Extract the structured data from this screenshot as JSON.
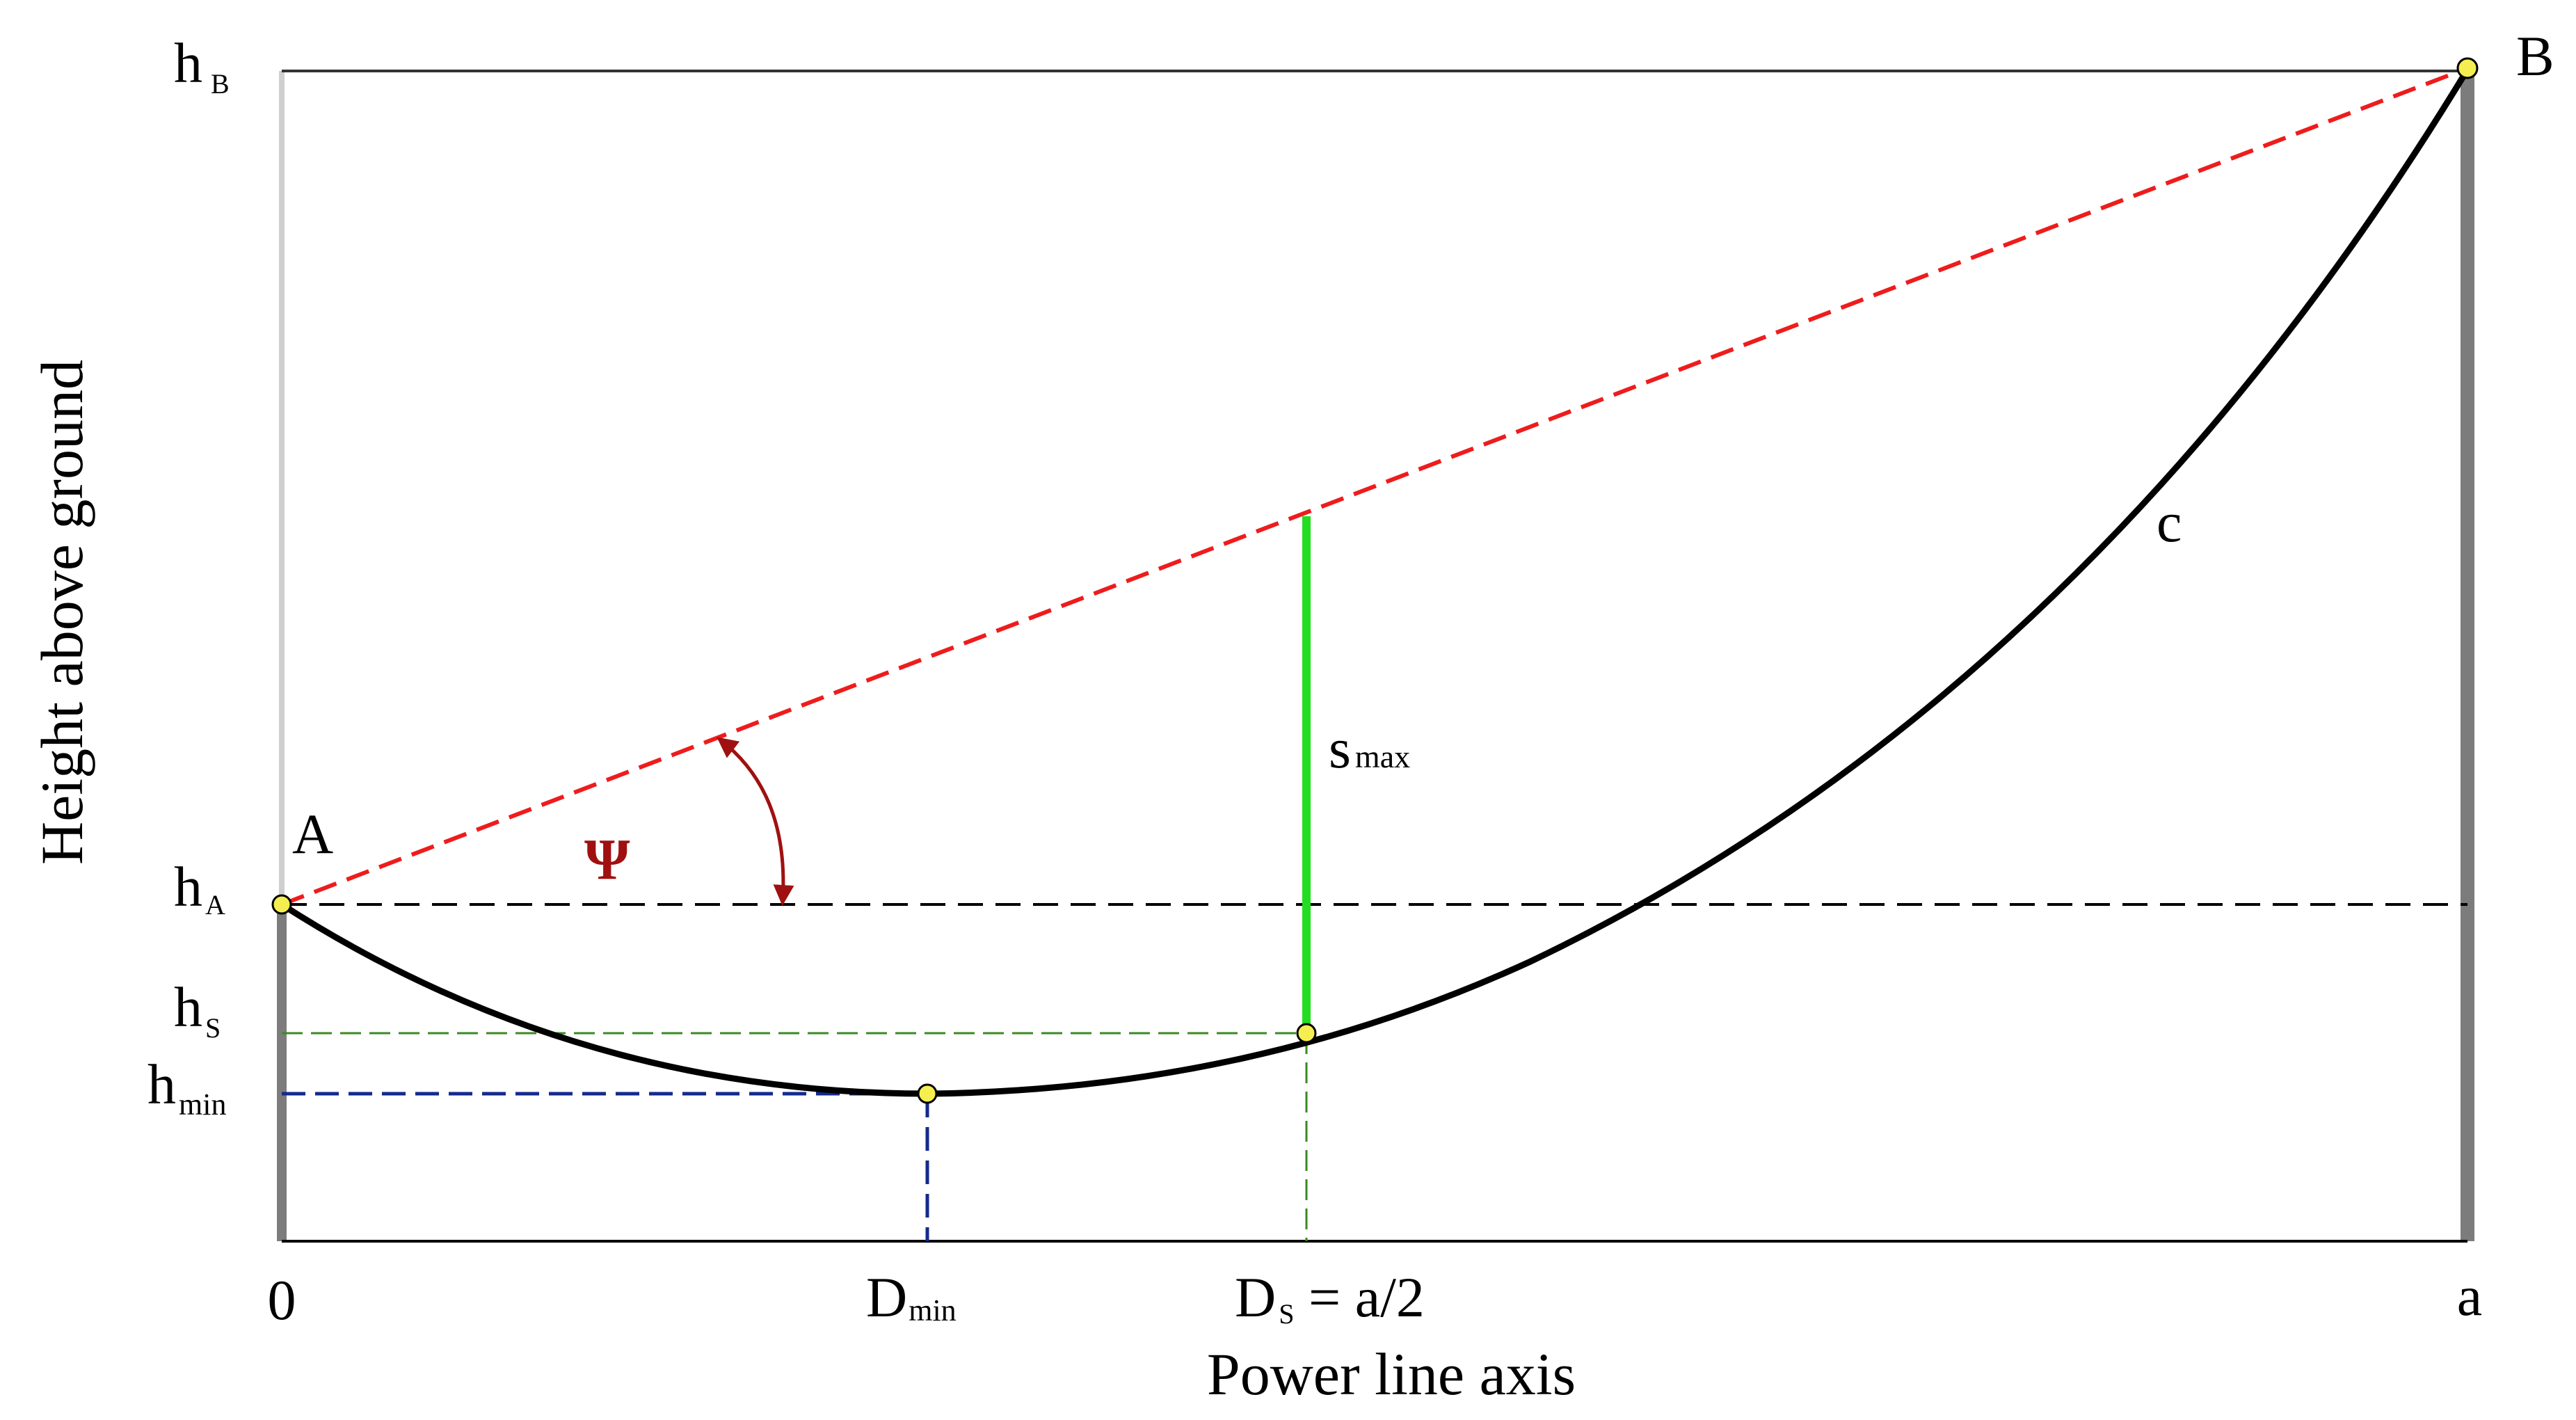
{
  "labels": {
    "y_axis_title": "Height above ground",
    "x_axis_title": "Power line axis",
    "point_a": "A",
    "point_b": "B",
    "curve": "c",
    "angle": "Ψ",
    "s_max": {
      "main": "s",
      "sub": "max"
    },
    "h_b": {
      "main": "h",
      "sub": "B"
    },
    "h_a": {
      "main": "h",
      "sub": "A"
    },
    "h_s": {
      "main": "h",
      "sub": "S"
    },
    "h_min": {
      "main": "h",
      "sub": "min"
    },
    "x_origin": "0",
    "d_min": {
      "main": "D",
      "sub": "min"
    },
    "d_s": {
      "main": "D",
      "sub": "S",
      "suffix": " = a/2"
    },
    "x_end": "a"
  },
  "colors": {
    "chord": "#ee1c1c",
    "sag": "#22dd22",
    "angle": "#a01010",
    "guide_green": "#3a8a20",
    "guide_blue": "#142a8c",
    "curve": "#000000",
    "tower": "#7c7c7c",
    "point_fill": "#f5ee50"
  },
  "icons": {
    "angle_arrow": "curved-double-arrow-icon",
    "points": "yellow-dot-marker-icon"
  }
}
